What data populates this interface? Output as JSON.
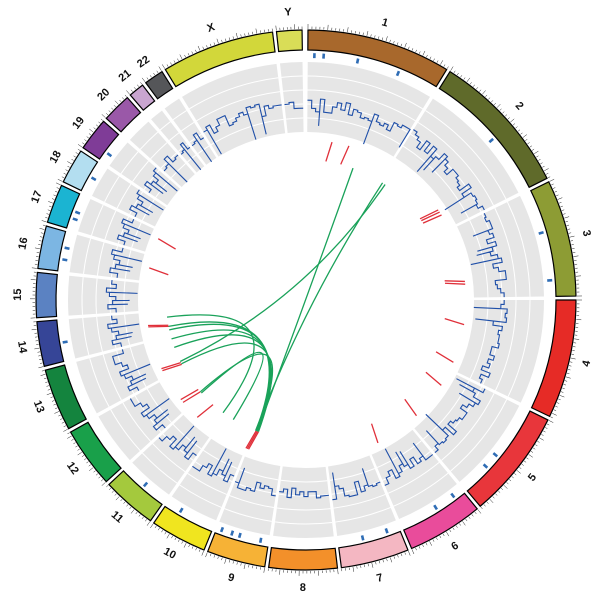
{
  "colors": {
    "track_bg": "#e6e6e6",
    "gridline": "#ffffff",
    "cnv_line": "#1f4fa8",
    "dot_mark": "#2f6db5",
    "red_mark": "#e0303a",
    "link": "#1aa25a",
    "outline": "#000000"
  },
  "chromosomes": [
    {
      "id": "1",
      "label": "1",
      "color": "#a8682c"
    },
    {
      "id": "2",
      "label": "2",
      "color": "#5f6a2a"
    },
    {
      "id": "3",
      "label": "3",
      "color": "#8d9c34"
    },
    {
      "id": "4",
      "label": "4",
      "color": "#e62b26"
    },
    {
      "id": "5",
      "label": "5",
      "color": "#e8363b"
    },
    {
      "id": "6",
      "label": "6",
      "color": "#e94c9b"
    },
    {
      "id": "7",
      "label": "7",
      "color": "#f4b7c2"
    },
    {
      "id": "8",
      "label": "8",
      "color": "#f3902a"
    },
    {
      "id": "9",
      "label": "9",
      "color": "#f6b236"
    },
    {
      "id": "10",
      "label": "10",
      "color": "#f0e51f"
    },
    {
      "id": "11",
      "label": "11",
      "color": "#a4c93d"
    },
    {
      "id": "12",
      "label": "12",
      "color": "#19a04a"
    },
    {
      "id": "13",
      "label": "13",
      "color": "#14843e"
    },
    {
      "id": "14",
      "label": "14",
      "color": "#364597"
    },
    {
      "id": "15",
      "label": "15",
      "color": "#5b82c2"
    },
    {
      "id": "16",
      "label": "16",
      "color": "#7cb6e3"
    },
    {
      "id": "17",
      "label": "17",
      "color": "#1bb4d2"
    },
    {
      "id": "18",
      "label": "18",
      "color": "#b3def0"
    },
    {
      "id": "19",
      "label": "19",
      "color": "#7f3c97"
    },
    {
      "id": "20",
      "label": "20",
      "color": "#9a58a8"
    },
    {
      "id": "21",
      "label": "21",
      "color": "#c9a5d0"
    },
    {
      "id": "22",
      "label": "22",
      "color": "#555659"
    },
    {
      "id": "X",
      "label": "X",
      "color": "#d2d73a"
    },
    {
      "id": "Y",
      "label": "Y",
      "color": "#d9dd57"
    }
  ],
  "links": [
    {
      "from": [
        "1",
        0.62
      ],
      "to": [
        "9",
        0.92
      ]
    },
    {
      "from": [
        "2",
        0.03
      ],
      "to": [
        "9",
        0.98
      ]
    },
    {
      "from": [
        "2",
        0.07
      ],
      "to": [
        "13",
        0.18
      ]
    },
    {
      "from": [
        "14",
        0.2
      ],
      "to": [
        "9",
        0.92
      ]
    },
    {
      "from": [
        "14",
        0.35
      ],
      "to": [
        "9",
        0.97
      ]
    },
    {
      "from": [
        "14",
        0.75
      ],
      "to": [
        "11",
        0.1
      ]
    },
    {
      "from": [
        "13",
        0.92
      ],
      "to": [
        "9",
        0.94
      ]
    },
    {
      "from": [
        "13",
        0.65
      ],
      "to": [
        "9",
        0.9
      ]
    },
    {
      "from": [
        "12",
        0.1
      ],
      "to": [
        "9",
        0.93
      ]
    },
    {
      "from": [
        "12",
        0.05
      ],
      "to": [
        "10",
        0.75
      ]
    },
    {
      "from": [
        "13",
        0.1
      ],
      "to": [
        "9",
        0.88
      ]
    }
  ],
  "red_marks": [
    {
      "chr": "1",
      "pos": 0.25
    },
    {
      "chr": "1",
      "pos": 0.45
    },
    {
      "chr": "2",
      "pos": 0.72
    },
    {
      "chr": "2",
      "pos": 0.75
    },
    {
      "chr": "2",
      "pos": 0.79
    },
    {
      "chr": "3",
      "pos": 0.72
    },
    {
      "chr": "3",
      "pos": 0.76
    },
    {
      "chr": "4",
      "pos": 0.3
    },
    {
      "chr": "4",
      "pos": 0.85
    },
    {
      "chr": "5",
      "pos": 0.2
    },
    {
      "chr": "5",
      "pos": 0.8
    },
    {
      "chr": "6",
      "pos": 0.7
    },
    {
      "chr": "9",
      "pos": 0.88
    },
    {
      "chr": "9",
      "pos": 0.92
    },
    {
      "chr": "9",
      "pos": 0.96
    },
    {
      "chr": "11",
      "pos": 0.55
    },
    {
      "chr": "12",
      "pos": 0.1
    },
    {
      "chr": "12",
      "pos": 0.2
    },
    {
      "chr": "13",
      "pos": 0.08
    },
    {
      "chr": "13",
      "pos": 0.14
    },
    {
      "chr": "14",
      "pos": 0.35
    },
    {
      "chr": "14",
      "pos": 0.4
    },
    {
      "chr": "16",
      "pos": 0.4
    },
    {
      "chr": "17",
      "pos": 0.55
    }
  ],
  "dot_marks": [
    {
      "chr": "1",
      "pos": 0.05
    },
    {
      "chr": "1",
      "pos": 0.12
    },
    {
      "chr": "1",
      "pos": 0.38
    },
    {
      "chr": "1",
      "pos": 0.7
    },
    {
      "chr": "2",
      "pos": 0.55
    },
    {
      "chr": "3",
      "pos": 0.4
    },
    {
      "chr": "3",
      "pos": 0.85
    },
    {
      "chr": "5",
      "pos": 0.55
    },
    {
      "chr": "5",
      "pos": 0.7
    },
    {
      "chr": "6",
      "pos": 0.15
    },
    {
      "chr": "6",
      "pos": 0.45
    },
    {
      "chr": "7",
      "pos": 0.2
    },
    {
      "chr": "7",
      "pos": 0.6
    },
    {
      "chr": "9",
      "pos": 0.15
    },
    {
      "chr": "9",
      "pos": 0.55
    },
    {
      "chr": "9",
      "pos": 0.7
    },
    {
      "chr": "9",
      "pos": 0.9
    },
    {
      "chr": "10",
      "pos": 0.7
    },
    {
      "chr": "11",
      "pos": 0.5
    },
    {
      "chr": "14",
      "pos": 0.45
    },
    {
      "chr": "16",
      "pos": 0.3
    },
    {
      "chr": "16",
      "pos": 0.6
    },
    {
      "chr": "17",
      "pos": 0.3
    },
    {
      "chr": "17",
      "pos": 0.5
    },
    {
      "chr": "18",
      "pos": 0.5
    },
    {
      "chr": "19",
      "pos": 0.3
    }
  ]
}
